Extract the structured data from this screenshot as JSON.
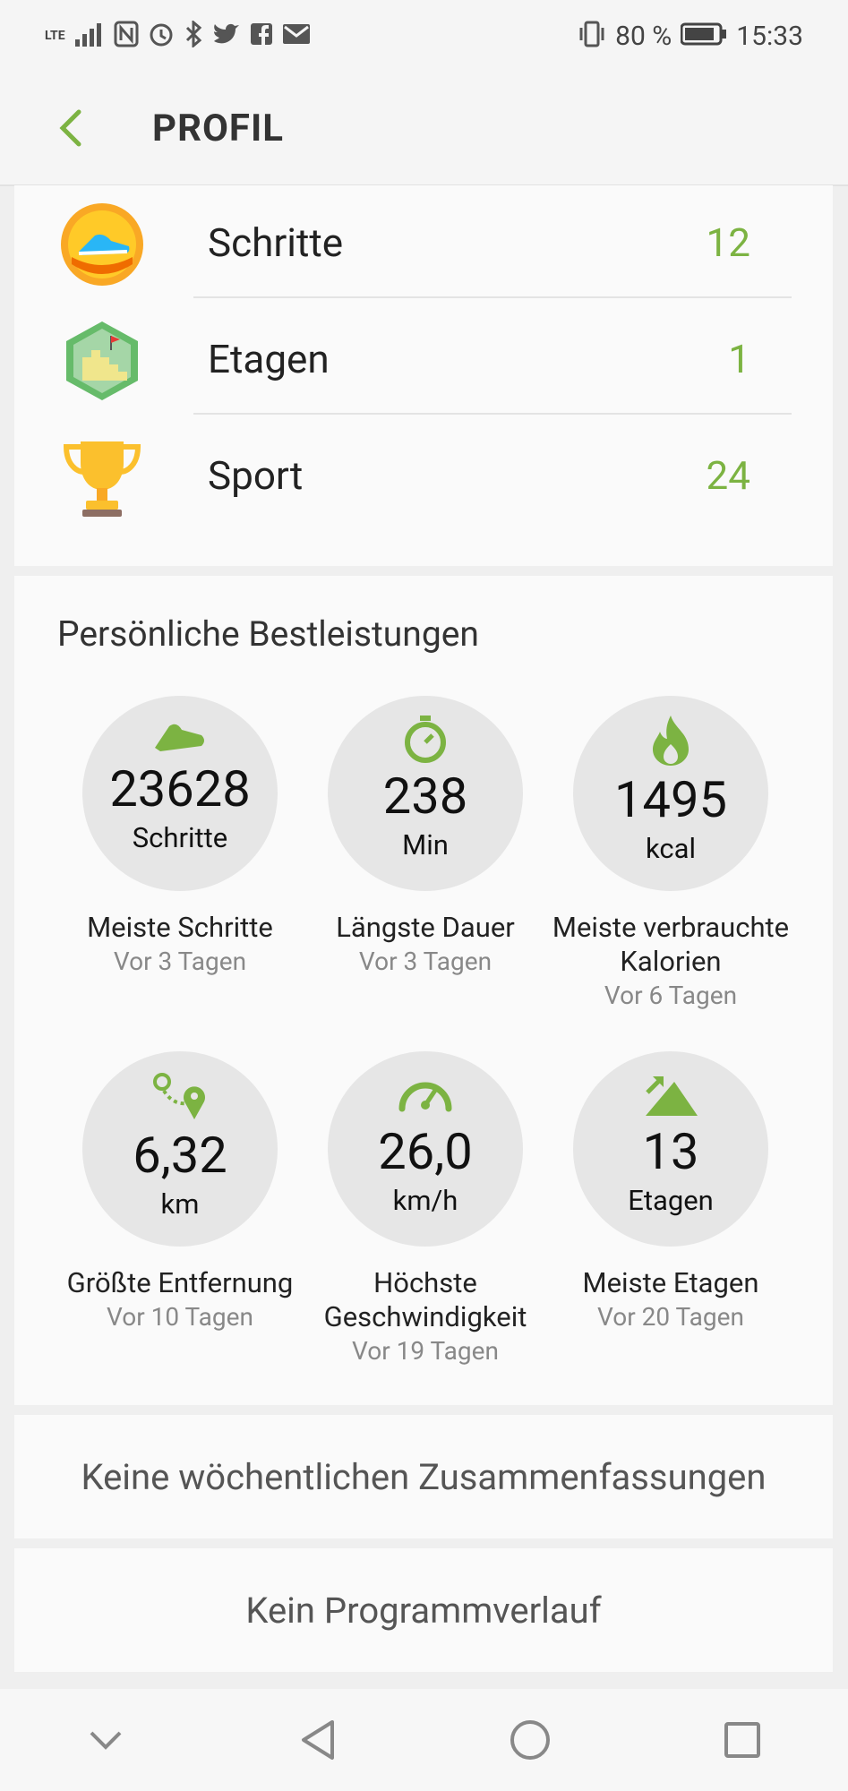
{
  "status_bar": {
    "network": "LTE",
    "battery": "80 %",
    "time": "15:33"
  },
  "header": {
    "title": "PROFIL",
    "back_icon": "chevron-left-icon"
  },
  "achievements": [
    {
      "label": "Schritte",
      "value": "12",
      "icon": "sneaker-badge-icon"
    },
    {
      "label": "Etagen",
      "value": "1",
      "icon": "stairs-badge-icon"
    },
    {
      "label": "Sport",
      "value": "24",
      "icon": "trophy-icon"
    }
  ],
  "best": {
    "title": "Persönliche Bestleistungen",
    "items": [
      {
        "icon": "shoe-icon",
        "value": "23628",
        "unit": "Schritte",
        "label": "Meiste Schritte",
        "when": "Vor 3 Tagen"
      },
      {
        "icon": "stopwatch-icon",
        "value": "238",
        "unit": "Min",
        "label": "Längste Dauer",
        "when": "Vor 3 Tagen"
      },
      {
        "icon": "flame-icon",
        "value": "1495",
        "unit": "kcal",
        "label": "Meiste verbrauchte Kalorien",
        "when": "Vor 6 Tagen"
      },
      {
        "icon": "route-icon",
        "value": "6,32",
        "unit": "km",
        "label": "Größte Entfernung",
        "when": "Vor 10 Tagen"
      },
      {
        "icon": "speedometer-icon",
        "value": "26,0",
        "unit": "km/h",
        "label": "Höchste Geschwindigkeit",
        "when": "Vor 19 Tagen"
      },
      {
        "icon": "mountain-icon",
        "value": "13",
        "unit": "Etagen",
        "label": "Meiste Etagen",
        "when": "Vor 20 Tagen"
      }
    ]
  },
  "weekly": {
    "text": "Keine wöchentlichen Zusammenfassungen"
  },
  "program": {
    "text": "Kein Programmverlauf"
  },
  "colors": {
    "accent": "#7cb342",
    "card": "#fafafa",
    "background": "#efefef"
  }
}
